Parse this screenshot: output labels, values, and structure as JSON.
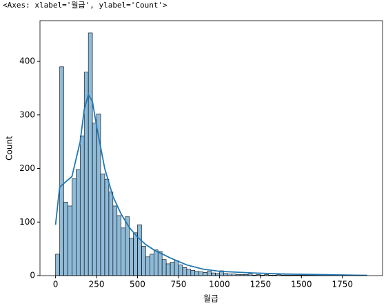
{
  "output_text": "<Axes: xlabel='월급', ylabel='Count'>",
  "chart_data": {
    "type": "histogram",
    "xlabel": "월급",
    "ylabel": "Count",
    "bins": [
      0,
      25,
      50,
      75,
      100,
      125,
      150,
      175,
      200,
      225,
      250,
      275,
      300,
      325,
      350,
      375,
      400,
      425,
      450,
      475,
      500,
      525,
      550,
      575,
      600,
      625,
      650,
      675,
      700,
      725,
      750,
      775,
      800,
      825,
      850,
      875,
      900,
      925,
      950,
      975,
      1000,
      1025,
      1050,
      1075,
      1100,
      1125,
      1150,
      1175,
      1200,
      1225,
      1250,
      1275,
      1300,
      1325,
      1350,
      1375,
      1400,
      1425,
      1450,
      1475,
      1500,
      1525,
      1550,
      1575,
      1600,
      1625,
      1650,
      1675,
      1700,
      1725,
      1750,
      1775,
      1800,
      1825,
      1850,
      1875,
      1900
    ],
    "values": [
      40,
      390,
      137,
      130,
      181,
      198,
      261,
      380,
      453,
      285,
      302,
      190,
      180,
      156,
      130,
      112,
      89,
      110,
      70,
      80,
      95,
      55,
      35,
      40,
      48,
      45,
      30,
      22,
      25,
      28,
      20,
      15,
      12,
      10,
      8,
      7,
      6,
      8,
      5,
      4,
      9,
      4,
      3,
      3,
      2,
      2,
      2,
      3,
      1,
      2,
      1,
      2,
      1,
      1,
      2,
      1,
      1,
      1,
      1,
      1,
      1,
      1,
      1,
      1,
      1,
      2,
      1,
      1,
      1,
      0,
      1,
      1,
      0,
      1,
      1,
      1
    ],
    "color": "#1f77b4",
    "kde": {
      "x": [
        0,
        25,
        50,
        100,
        150,
        175,
        200,
        225,
        250,
        300,
        350,
        400,
        450,
        500,
        550,
        600,
        700,
        800,
        900,
        1000,
        1200,
        1400,
        1600,
        1800,
        1900
      ],
      "values": [
        95,
        165,
        172,
        185,
        250,
        310,
        338,
        325,
        280,
        200,
        148,
        115,
        90,
        72,
        58,
        48,
        33,
        20,
        12,
        8,
        5,
        3,
        2,
        1,
        0.5
      ]
    },
    "xlim": [
      -95,
      1995
    ],
    "ylim": [
      0,
      476
    ],
    "xticks": [
      0,
      250,
      500,
      750,
      1000,
      1250,
      1500,
      1750
    ],
    "yticks": [
      0,
      100,
      200,
      300,
      400
    ]
  }
}
